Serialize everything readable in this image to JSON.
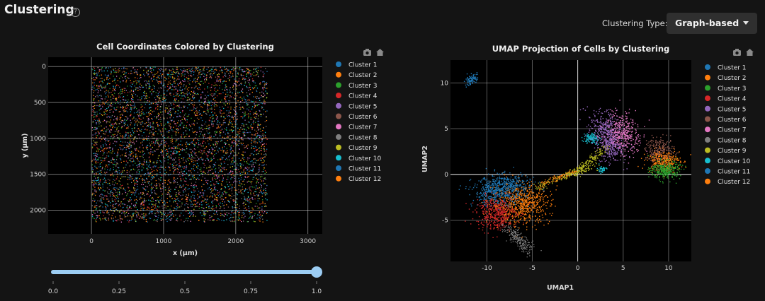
{
  "header": {
    "title": "Clustering",
    "help_icon": "question-circle-icon"
  },
  "clustering_type": {
    "label": "Clustering Type:",
    "selected": "Graph-based"
  },
  "colors": {
    "background": "#141414",
    "plot_bg": "#000000",
    "clusters": [
      "#1f77b4",
      "#ff7f0e",
      "#2ca02c",
      "#d62728",
      "#9467bd",
      "#8c564b",
      "#e377c2",
      "#7f7f7f",
      "#bcbd22",
      "#17becf",
      "#1f77b4",
      "#ff7f0e"
    ]
  },
  "toolbar_icons": [
    "camera-icon",
    "home-icon"
  ],
  "chart_data": [
    {
      "type": "scatter",
      "title": "Cell Coordinates Colored by Clustering",
      "xlabel": "x (µm)",
      "ylabel": "y (µm)",
      "xlim": [
        -600,
        3200
      ],
      "ylim": [
        2330,
        -130
      ],
      "y_reversed": true,
      "x_ticks": [
        0,
        1000,
        2000,
        3000
      ],
      "y_ticks": [
        0,
        500,
        1000,
        1500,
        2000
      ],
      "grid": true,
      "legend_position": "right",
      "point_extent": {
        "x": [
          0,
          2430
        ],
        "y": [
          0,
          2160
        ]
      },
      "series": [
        {
          "name": "Cluster 1"
        },
        {
          "name": "Cluster 2"
        },
        {
          "name": "Cluster 3"
        },
        {
          "name": "Cluster 4"
        },
        {
          "name": "Cluster 5"
        },
        {
          "name": "Cluster 6"
        },
        {
          "name": "Cluster 7"
        },
        {
          "name": "Cluster 8"
        },
        {
          "name": "Cluster 9"
        },
        {
          "name": "Cluster 10"
        },
        {
          "name": "Cluster 11"
        },
        {
          "name": "Cluster 12"
        }
      ]
    },
    {
      "type": "scatter",
      "title": "UMAP Projection of Cells by Clustering",
      "xlabel": "UMAP1",
      "ylabel": "UMAP2",
      "xlim": [
        -14,
        12.5
      ],
      "ylim": [
        -9.5,
        12.5
      ],
      "x_ticks": [
        -10,
        -5,
        0,
        5,
        10
      ],
      "y_ticks": [
        -5,
        0,
        5,
        10
      ],
      "grid": true,
      "legend_position": "right",
      "series": [
        {
          "name": "Cluster 1",
          "center": [
            -10.0,
            -2.0
          ]
        },
        {
          "name": "Cluster 2",
          "center": [
            -6.5,
            -3.2
          ]
        },
        {
          "name": "Cluster 3",
          "center": [
            9.5,
            0.7
          ]
        },
        {
          "name": "Cluster 4",
          "center": [
            -9.0,
            -4.3
          ]
        },
        {
          "name": "Cluster 5",
          "center": [
            3.2,
            4.6
          ]
        },
        {
          "name": "Cluster 6",
          "center": [
            9.0,
            2.5
          ]
        },
        {
          "name": "Cluster 7",
          "center": [
            4.8,
            4.4
          ]
        },
        {
          "name": "Cluster 8",
          "center": [
            -6.2,
            -7.2
          ]
        },
        {
          "name": "Cluster 9",
          "center": [
            1.0,
            1.3
          ]
        },
        {
          "name": "Cluster 10",
          "center": [
            1.6,
            3.9
          ]
        },
        {
          "name": "Cluster 11",
          "center": [
            -11.8,
            10.3
          ]
        },
        {
          "name": "Cluster 12",
          "center": [
            9.3,
            1.6
          ]
        }
      ]
    }
  ],
  "slider": {
    "value": 1.0,
    "min": 0,
    "max": 1,
    "ticks": [
      "0.0",
      "0.25",
      "0.5",
      "0.75",
      "1.0"
    ]
  }
}
